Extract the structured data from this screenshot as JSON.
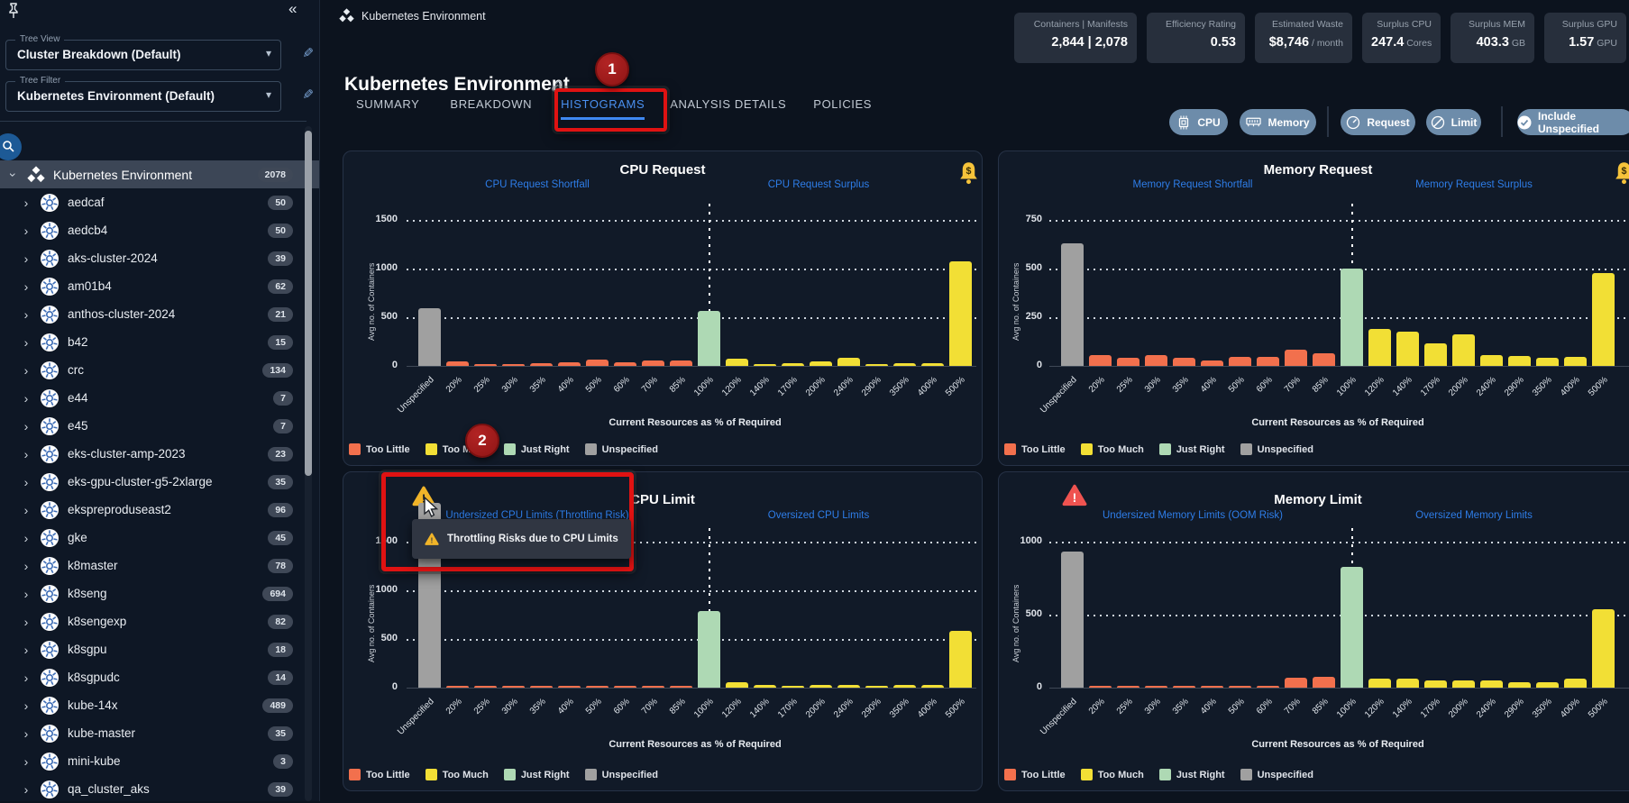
{
  "sidebar": {
    "collapse_icon": "«",
    "tree_view": {
      "label": "Tree View",
      "value": "Cluster Breakdown (Default)"
    },
    "tree_filter": {
      "label": "Tree Filter",
      "value": "Kubernetes Environment (Default)"
    },
    "root": {
      "name": "Kubernetes Environment",
      "count": "2078"
    },
    "items": [
      {
        "name": "aedcaf",
        "count": "50"
      },
      {
        "name": "aedcb4",
        "count": "50"
      },
      {
        "name": "aks-cluster-2024",
        "count": "39"
      },
      {
        "name": "am01b4",
        "count": "62"
      },
      {
        "name": "anthos-cluster-2024",
        "count": "21"
      },
      {
        "name": "b42",
        "count": "15"
      },
      {
        "name": "crc",
        "count": "134"
      },
      {
        "name": "e44",
        "count": "7"
      },
      {
        "name": "e45",
        "count": "7"
      },
      {
        "name": "eks-cluster-amp-2023",
        "count": "23"
      },
      {
        "name": "eks-gpu-cluster-g5-2xlarge",
        "count": "35"
      },
      {
        "name": "ekspreproduseast2",
        "count": "96"
      },
      {
        "name": "gke",
        "count": "45"
      },
      {
        "name": "k8master",
        "count": "78"
      },
      {
        "name": "k8seng",
        "count": "694"
      },
      {
        "name": "k8sengexp",
        "count": "82"
      },
      {
        "name": "k8sgpu",
        "count": "18"
      },
      {
        "name": "k8sgpudc",
        "count": "14"
      },
      {
        "name": "kube-14x",
        "count": "489"
      },
      {
        "name": "kube-master",
        "count": "35"
      },
      {
        "name": "mini-kube",
        "count": "3"
      },
      {
        "name": "qa_cluster_aks",
        "count": "39"
      }
    ]
  },
  "header": {
    "breadcrumb": "Kubernetes Environment",
    "title": "Kubernetes Environment",
    "tabs": [
      {
        "label": "SUMMARY",
        "active": false
      },
      {
        "label": "BREAKDOWN",
        "active": false
      },
      {
        "label": "HISTOGRAMS",
        "active": true
      },
      {
        "label": "ANALYSIS DETAILS",
        "active": false
      },
      {
        "label": "POLICIES",
        "active": false
      }
    ]
  },
  "stats": [
    {
      "label": "Containers | Manifests",
      "value": "2,844 | 2,078",
      "unit": ""
    },
    {
      "label": "Efficiency Rating",
      "value": "0.53",
      "unit": ""
    },
    {
      "label": "Estimated Waste",
      "value": "$8,746",
      "unit": "/ month"
    },
    {
      "label": "Surplus CPU",
      "value": "247.4",
      "unit": "Cores"
    },
    {
      "label": "Surplus MEM",
      "value": "403.3",
      "unit": "GB"
    },
    {
      "label": "Surplus GPU",
      "value": "1.57",
      "unit": "GPU"
    }
  ],
  "filters": {
    "pills": [
      {
        "label": "CPU",
        "icon": "cpu-chip-icon"
      },
      {
        "label": "Memory",
        "icon": "memory-icon"
      },
      {
        "label": "Request",
        "icon": "gauge-icon"
      },
      {
        "label": "Limit",
        "icon": "circle-slash-icon"
      },
      {
        "label": "Include Unspecified",
        "icon": "check-circle-icon"
      }
    ]
  },
  "annotations": {
    "step_1": "1",
    "step_2": "2",
    "tooltip_text": "Throttling Risks due to CPU Limits"
  },
  "histogram_shared": {
    "x_axis_label": "Current Resources as % of Required",
    "y_axis_label": "Avg no. of Containers",
    "reference_line": "100%",
    "legend": [
      {
        "label": "Too Little",
        "color": "#f2704d"
      },
      {
        "label": "Too Much",
        "color": "#f2df35"
      },
      {
        "label": "Just Right",
        "color": "#aed9b4"
      },
      {
        "label": "Unspecified",
        "color": "#a0a0a0"
      }
    ],
    "group_colors": {
      "too_little": "#f2704d",
      "too_much": "#f2df35",
      "just_right": "#aed9b4",
      "unspecified": "#a0a0a0"
    }
  },
  "chart_data": [
    {
      "type": "bar",
      "title": "CPU Request",
      "left_link": "CPU Request Shortfall",
      "right_link": "CPU Request Surplus",
      "left_icon": "",
      "bell": true,
      "ylim": [
        0,
        1500
      ],
      "y_ticks": [
        0,
        500,
        1000,
        1500
      ],
      "categories": [
        "Unspecified",
        "20%",
        "25%",
        "30%",
        "35%",
        "40%",
        "50%",
        "60%",
        "70%",
        "85%",
        "100%",
        "120%",
        "140%",
        "170%",
        "200%",
        "240%",
        "290%",
        "350%",
        "400%",
        "500%"
      ],
      "groups": [
        "unspecified",
        "too_little",
        "too_little",
        "too_little",
        "too_little",
        "too_little",
        "too_little",
        "too_little",
        "too_little",
        "too_little",
        "just_right",
        "too_much",
        "too_much",
        "too_much",
        "too_much",
        "too_much",
        "too_much",
        "too_much",
        "too_much",
        "too_much"
      ],
      "values": [
        590,
        45,
        8,
        22,
        30,
        35,
        65,
        40,
        58,
        55,
        565,
        75,
        22,
        28,
        48,
        85,
        12,
        28,
        32,
        1070
      ]
    },
    {
      "type": "bar",
      "title": "Memory Request",
      "left_link": "Memory Request Shortfall",
      "right_link": "Memory Request Surplus",
      "left_icon": "",
      "bell": true,
      "ylim": [
        0,
        750
      ],
      "y_ticks": [
        0,
        250,
        500,
        750
      ],
      "categories": [
        "Unspecified",
        "20%",
        "25%",
        "30%",
        "35%",
        "40%",
        "50%",
        "60%",
        "70%",
        "85%",
        "100%",
        "120%",
        "140%",
        "170%",
        "200%",
        "240%",
        "290%",
        "350%",
        "400%",
        "500%"
      ],
      "groups": [
        "unspecified",
        "too_little",
        "too_little",
        "too_little",
        "too_little",
        "too_little",
        "too_little",
        "too_little",
        "too_little",
        "too_little",
        "just_right",
        "too_much",
        "too_much",
        "too_much",
        "too_much",
        "too_much",
        "too_much",
        "too_much",
        "too_much",
        "too_much"
      ],
      "values": [
        630,
        55,
        40,
        55,
        40,
        28,
        45,
        48,
        85,
        65,
        500,
        190,
        175,
        115,
        160,
        55,
        50,
        42,
        48,
        475
      ]
    },
    {
      "type": "bar",
      "title": "CPU Limit",
      "left_link": "Undersized CPU Limits (Throttling Risk)",
      "right_link": "Oversized CPU Limits",
      "left_icon": "warning-triangle-yellow",
      "bell": false,
      "ylim": [
        0,
        1500
      ],
      "y_ticks": [
        0,
        500,
        1000,
        1500
      ],
      "categories": [
        "Unspecified",
        "20%",
        "25%",
        "30%",
        "35%",
        "40%",
        "50%",
        "60%",
        "70%",
        "85%",
        "100%",
        "120%",
        "140%",
        "170%",
        "200%",
        "240%",
        "290%",
        "350%",
        "400%",
        "500%"
      ],
      "groups": [
        "unspecified",
        "too_little",
        "too_little",
        "too_little",
        "too_little",
        "too_little",
        "too_little",
        "too_little",
        "too_little",
        "too_little",
        "just_right",
        "too_much",
        "too_much",
        "too_much",
        "too_much",
        "too_much",
        "too_much",
        "too_much",
        "too_much",
        "too_much"
      ],
      "values": [
        1900,
        5,
        3,
        3,
        5,
        5,
        10,
        8,
        12,
        12,
        790,
        60,
        25,
        20,
        25,
        25,
        20,
        25,
        30,
        580
      ]
    },
    {
      "type": "bar",
      "title": "Memory Limit",
      "left_link": "Undersized Memory Limits (OOM Risk)",
      "right_link": "Oversized Memory Limits",
      "left_icon": "warning-triangle-red",
      "bell": false,
      "ylim": [
        0,
        1000
      ],
      "y_ticks": [
        0,
        500,
        1000
      ],
      "categories": [
        "Unspecified",
        "20%",
        "25%",
        "30%",
        "35%",
        "40%",
        "50%",
        "60%",
        "70%",
        "85%",
        "100%",
        "120%",
        "140%",
        "170%",
        "200%",
        "240%",
        "290%",
        "350%",
        "400%",
        "500%"
      ],
      "groups": [
        "unspecified",
        "too_little",
        "too_little",
        "too_little",
        "too_little",
        "too_little",
        "too_little",
        "too_little",
        "too_little",
        "too_little",
        "just_right",
        "too_much",
        "too_much",
        "too_much",
        "too_much",
        "too_much",
        "too_much",
        "too_much",
        "too_much",
        "too_much"
      ],
      "values": [
        930,
        2,
        2,
        2,
        2,
        3,
        10,
        12,
        65,
        75,
        830,
        60,
        60,
        50,
        50,
        50,
        35,
        40,
        60,
        535
      ]
    }
  ]
}
